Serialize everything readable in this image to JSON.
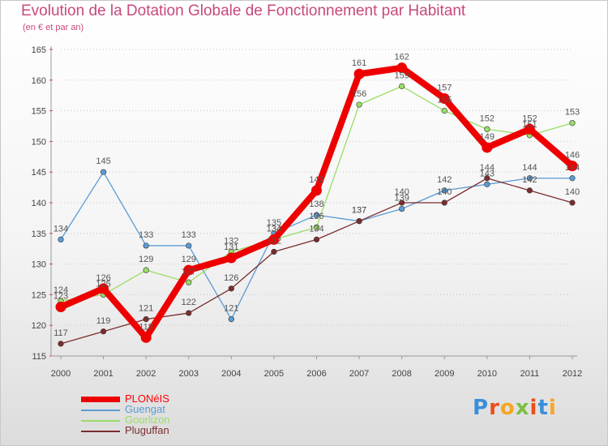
{
  "chart_data": {
    "type": "line",
    "title": "Evolution de la Dotation Globale de Fonctionnement par Habitant",
    "subtitle": "(en € et par an)",
    "x": [
      "2000",
      "2001",
      "2002",
      "2003",
      "2004",
      "2005",
      "2006",
      "2007",
      "2008",
      "2009",
      "2010",
      "2011",
      "2012"
    ],
    "yticks": [
      115,
      120,
      125,
      130,
      135,
      140,
      145,
      150,
      155,
      160,
      165
    ],
    "ylim": [
      115,
      165
    ],
    "grid": "horizontal dotted",
    "legend_position": "bottom-left",
    "series": [
      {
        "name": "PLONéIS",
        "color": "#ee0000",
        "values": [
          123,
          126,
          118,
          129,
          131,
          134,
          142,
          161,
          162,
          157,
          149,
          152,
          146
        ]
      },
      {
        "name": "Guengat",
        "color": "#5b9bd5",
        "values": [
          134,
          145,
          133,
          133,
          121,
          135,
          138,
          137,
          139,
          142,
          143,
          144,
          144
        ]
      },
      {
        "name": "Gourlizon",
        "color": "#99dd66",
        "values": [
          124,
          125,
          129,
          127,
          132,
          134,
          136,
          156,
          159,
          155,
          152,
          151,
          153
        ]
      },
      {
        "name": "Pluguffan",
        "color": "#7b2d2d",
        "values": [
          117,
          119,
          121,
          122,
          126,
          132,
          134,
          137,
          140,
          140,
          144,
          142,
          140
        ]
      }
    ]
  },
  "logo": {
    "text": "Proxiti",
    "letters": [
      "P",
      "r",
      "o",
      "x",
      "i",
      "t",
      "i"
    ],
    "colors": [
      "#3a8fd8",
      "#e94e1b",
      "#f5a623",
      "#7bc043",
      "#e94e1b",
      "#3a8fd8",
      "#f5a623"
    ]
  }
}
